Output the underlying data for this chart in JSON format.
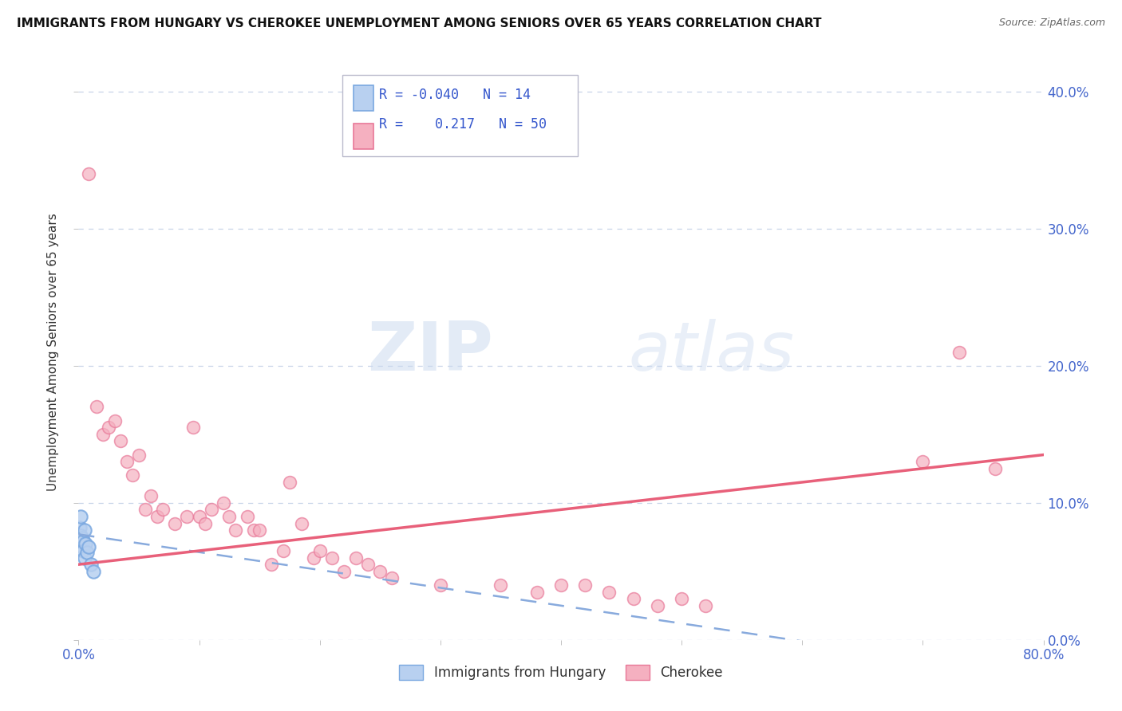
{
  "title": "IMMIGRANTS FROM HUNGARY VS CHEROKEE UNEMPLOYMENT AMONG SENIORS OVER 65 YEARS CORRELATION CHART",
  "source": "Source: ZipAtlas.com",
  "ylabel": "Unemployment Among Seniors over 65 years",
  "xlim": [
    0.0,
    0.8
  ],
  "ylim": [
    0.0,
    0.42
  ],
  "xticks": [
    0.0,
    0.1,
    0.2,
    0.3,
    0.4,
    0.5,
    0.6,
    0.7,
    0.8
  ],
  "xticklabels": [
    "0.0%",
    "",
    "",
    "",
    "",
    "",
    "",
    "",
    "80.0%"
  ],
  "yticks": [
    0.0,
    0.1,
    0.2,
    0.3,
    0.4
  ],
  "yticklabels": [
    "0.0%",
    "10.0%",
    "20.0%",
    "30.0%",
    "40.0%"
  ],
  "legend_R1": "-0.040",
  "legend_N1": "14",
  "legend_R2": "0.217",
  "legend_N2": "50",
  "color_hungary": "#b8d0f0",
  "color_cherokee": "#f5b0c0",
  "edge_color_hungary": "#7aa8e0",
  "edge_color_cherokee": "#e87898",
  "trend_color_hungary": "#88aadd",
  "trend_color_cherokee": "#e8607a",
  "background_color": "#ffffff",
  "grid_color": "#c8d4e8",
  "tick_color": "#4466cc",
  "hungary_x": [
    0.001,
    0.002,
    0.002,
    0.003,
    0.003,
    0.004,
    0.004,
    0.005,
    0.005,
    0.006,
    0.007,
    0.008,
    0.01,
    0.012
  ],
  "hungary_y": [
    0.082,
    0.09,
    0.076,
    0.074,
    0.068,
    0.072,
    0.065,
    0.08,
    0.06,
    0.07,
    0.064,
    0.068,
    0.055,
    0.05
  ],
  "cherokee_x": [
    0.008,
    0.015,
    0.02,
    0.025,
    0.03,
    0.035,
    0.04,
    0.045,
    0.05,
    0.055,
    0.06,
    0.065,
    0.07,
    0.08,
    0.09,
    0.095,
    0.1,
    0.105,
    0.11,
    0.12,
    0.125,
    0.13,
    0.14,
    0.145,
    0.15,
    0.16,
    0.17,
    0.175,
    0.185,
    0.195,
    0.2,
    0.21,
    0.22,
    0.23,
    0.24,
    0.25,
    0.26,
    0.3,
    0.35,
    0.38,
    0.4,
    0.42,
    0.44,
    0.46,
    0.48,
    0.5,
    0.52,
    0.7,
    0.73,
    0.76
  ],
  "cherokee_y": [
    0.34,
    0.17,
    0.15,
    0.155,
    0.16,
    0.145,
    0.13,
    0.12,
    0.135,
    0.095,
    0.105,
    0.09,
    0.095,
    0.085,
    0.09,
    0.155,
    0.09,
    0.085,
    0.095,
    0.1,
    0.09,
    0.08,
    0.09,
    0.08,
    0.08,
    0.055,
    0.065,
    0.115,
    0.085,
    0.06,
    0.065,
    0.06,
    0.05,
    0.06,
    0.055,
    0.05,
    0.045,
    0.04,
    0.04,
    0.035,
    0.04,
    0.04,
    0.035,
    0.03,
    0.025,
    0.03,
    0.025,
    0.13,
    0.21,
    0.125
  ]
}
